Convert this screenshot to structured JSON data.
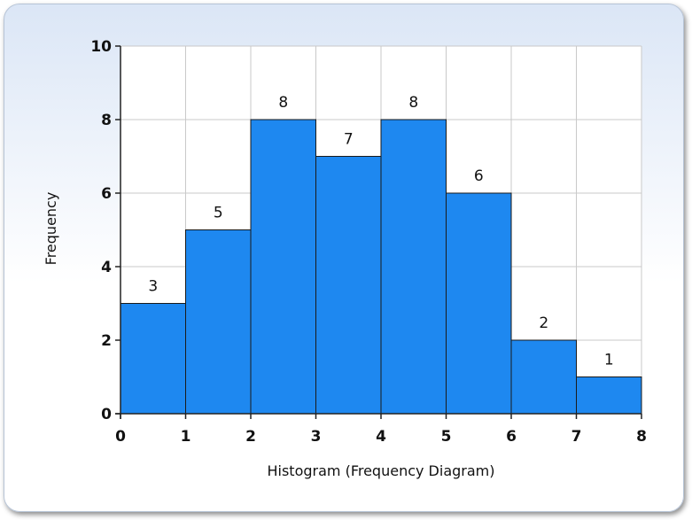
{
  "chart_data": {
    "type": "bar",
    "x": [
      0,
      1,
      2,
      3,
      4,
      5,
      6,
      7,
      8
    ],
    "categories": [
      "0-1",
      "1-2",
      "2-3",
      "3-4",
      "4-5",
      "5-6",
      "6-7",
      "7-8"
    ],
    "values": [
      3,
      5,
      8,
      7,
      8,
      6,
      2,
      1
    ],
    "data_labels": [
      "3",
      "5",
      "8",
      "7",
      "8",
      "6",
      "2",
      "1"
    ],
    "xlabel": "Histogram (Frequency Diagram)",
    "ylabel": "Frequency",
    "xlim": [
      0,
      8
    ],
    "ylim": [
      0,
      10
    ],
    "yticks": [
      "0",
      "2",
      "4",
      "6",
      "8",
      "10"
    ],
    "xticks": [
      "0",
      "1",
      "2",
      "3",
      "4",
      "5",
      "6",
      "7",
      "8"
    ],
    "grid": true,
    "bar_color": "#1e88f0"
  }
}
